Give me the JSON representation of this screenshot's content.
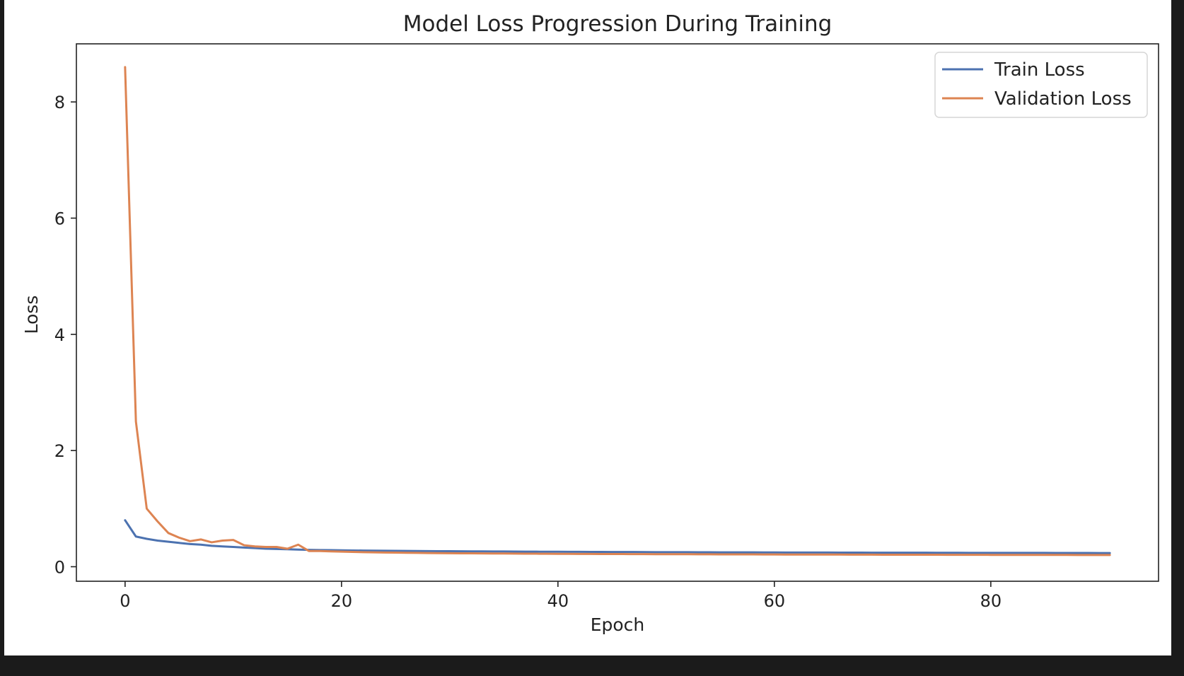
{
  "chart_data": {
    "type": "line",
    "title": "Model Loss Progression During Training",
    "xlabel": "Epoch",
    "ylabel": "Loss",
    "xlim": [
      -4.5,
      95.5
    ],
    "ylim": [
      -0.25,
      9.0
    ],
    "xticks": [
      0,
      20,
      40,
      60,
      80
    ],
    "yticks": [
      0,
      2,
      4,
      6,
      8
    ],
    "grid": false,
    "legend_position": "top-right",
    "series": [
      {
        "name": "Train Loss",
        "color": "#4c72b0",
        "x": [
          0,
          1,
          2,
          3,
          4,
          5,
          6,
          7,
          8,
          9,
          10,
          11,
          12,
          13,
          14,
          15,
          16,
          17,
          18,
          19,
          20,
          21,
          22,
          23,
          24,
          25,
          26,
          27,
          28,
          29,
          30,
          31,
          32,
          33,
          34,
          35,
          36,
          37,
          38,
          39,
          40,
          41,
          42,
          43,
          44,
          45,
          46,
          47,
          48,
          49,
          50,
          51,
          52,
          53,
          54,
          55,
          56,
          57,
          58,
          59,
          60,
          61,
          62,
          63,
          64,
          65,
          66,
          67,
          68,
          69,
          70,
          71,
          72,
          73,
          74,
          75,
          76,
          77,
          78,
          79,
          80,
          81,
          82,
          83,
          84,
          85,
          86,
          87,
          88,
          89,
          90,
          91
        ],
        "y": [
          0.8,
          0.52,
          0.48,
          0.45,
          0.43,
          0.41,
          0.39,
          0.38,
          0.36,
          0.35,
          0.34,
          0.33,
          0.32,
          0.31,
          0.305,
          0.3,
          0.295,
          0.29,
          0.287,
          0.285,
          0.283,
          0.28,
          0.278,
          0.276,
          0.275,
          0.273,
          0.272,
          0.27,
          0.269,
          0.268,
          0.267,
          0.266,
          0.265,
          0.264,
          0.263,
          0.262,
          0.261,
          0.26,
          0.259,
          0.258,
          0.258,
          0.257,
          0.256,
          0.255,
          0.255,
          0.254,
          0.253,
          0.253,
          0.252,
          0.251,
          0.251,
          0.25,
          0.25,
          0.249,
          0.249,
          0.248,
          0.248,
          0.247,
          0.247,
          0.246,
          0.246,
          0.245,
          0.245,
          0.245,
          0.244,
          0.244,
          0.243,
          0.243,
          0.243,
          0.242,
          0.242,
          0.242,
          0.241,
          0.241,
          0.241,
          0.24,
          0.24,
          0.24,
          0.239,
          0.239,
          0.239,
          0.239,
          0.238,
          0.238,
          0.238,
          0.238,
          0.237,
          0.237,
          0.237,
          0.237,
          0.236,
          0.236
        ]
      },
      {
        "name": "Validation Loss",
        "color": "#dd8452",
        "x": [
          0,
          1,
          2,
          3,
          4,
          5,
          6,
          7,
          8,
          9,
          10,
          11,
          12,
          13,
          14,
          15,
          16,
          17,
          18,
          19,
          20,
          21,
          22,
          23,
          24,
          25,
          26,
          27,
          28,
          29,
          30,
          31,
          32,
          33,
          34,
          35,
          36,
          37,
          38,
          39,
          40,
          41,
          42,
          43,
          44,
          45,
          46,
          47,
          48,
          49,
          50,
          51,
          52,
          53,
          54,
          55,
          56,
          57,
          58,
          59,
          60,
          61,
          62,
          63,
          64,
          65,
          66,
          67,
          68,
          69,
          70,
          71,
          72,
          73,
          74,
          75,
          76,
          77,
          78,
          79,
          80,
          81,
          82,
          83,
          84,
          85,
          86,
          87,
          88,
          89,
          90,
          91
        ],
        "y": [
          8.6,
          2.5,
          1.0,
          0.78,
          0.58,
          0.5,
          0.44,
          0.47,
          0.42,
          0.45,
          0.46,
          0.37,
          0.35,
          0.34,
          0.34,
          0.31,
          0.38,
          0.27,
          0.27,
          0.265,
          0.26,
          0.255,
          0.25,
          0.248,
          0.245,
          0.243,
          0.24,
          0.238,
          0.236,
          0.234,
          0.232,
          0.231,
          0.23,
          0.229,
          0.228,
          0.227,
          0.226,
          0.225,
          0.224,
          0.223,
          0.222,
          0.221,
          0.22,
          0.22,
          0.219,
          0.218,
          0.218,
          0.217,
          0.217,
          0.216,
          0.216,
          0.215,
          0.215,
          0.214,
          0.214,
          0.213,
          0.213,
          0.212,
          0.212,
          0.211,
          0.211,
          0.21,
          0.21,
          0.21,
          0.209,
          0.209,
          0.209,
          0.208,
          0.208,
          0.208,
          0.207,
          0.207,
          0.207,
          0.206,
          0.206,
          0.206,
          0.205,
          0.205,
          0.205,
          0.205,
          0.204,
          0.204,
          0.204,
          0.204,
          0.203,
          0.203,
          0.203,
          0.203,
          0.202,
          0.202,
          0.202,
          0.202
        ]
      }
    ]
  }
}
